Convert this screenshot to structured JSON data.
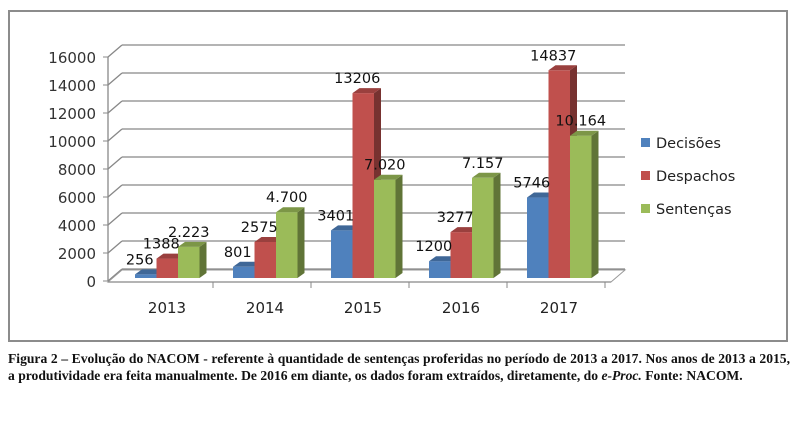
{
  "chart_data": {
    "type": "bar",
    "categories": [
      "2013",
      "2014",
      "2015",
      "2016",
      "2017"
    ],
    "series": [
      {
        "name": "Decisões",
        "color": "#4f81bd",
        "values": [
          256,
          801,
          3401,
          1200,
          5746
        ],
        "labels": [
          "256",
          "801",
          "3401",
          "1200",
          "5746"
        ]
      },
      {
        "name": "Despachos",
        "color": "#c0504d",
        "values": [
          1388,
          2575,
          13206,
          3277,
          14837
        ],
        "labels": [
          "1388",
          "2575",
          "13206",
          "3277",
          "14837"
        ]
      },
      {
        "name": "Sentenças",
        "color": "#9bbb59",
        "values": [
          2223,
          4700,
          7020,
          7157,
          10164
        ],
        "labels": [
          "2.223",
          "4.700",
          "7.020",
          "7.157",
          "10.164"
        ]
      }
    ],
    "yticks": [
      "0",
      "2000",
      "4000",
      "6000",
      "8000",
      "10000",
      "12000",
      "14000",
      "16000"
    ],
    "ylim": [
      0,
      16000
    ],
    "grid": true,
    "legend": "right",
    "style": "3d-clustered-column"
  },
  "caption": {
    "lead": "Figura 2 – Evolução do NACOM - referente à quantidade de sentenças proferidas no período de 2013 a 2017. Nos anos de 2013 a 2015, a produtividade era feita manualmente. De 2016 em diante, os dados foram extraídos, diretamente, do ",
    "italic": "e-Proc.",
    "tail": "  Fonte: NACOM."
  }
}
